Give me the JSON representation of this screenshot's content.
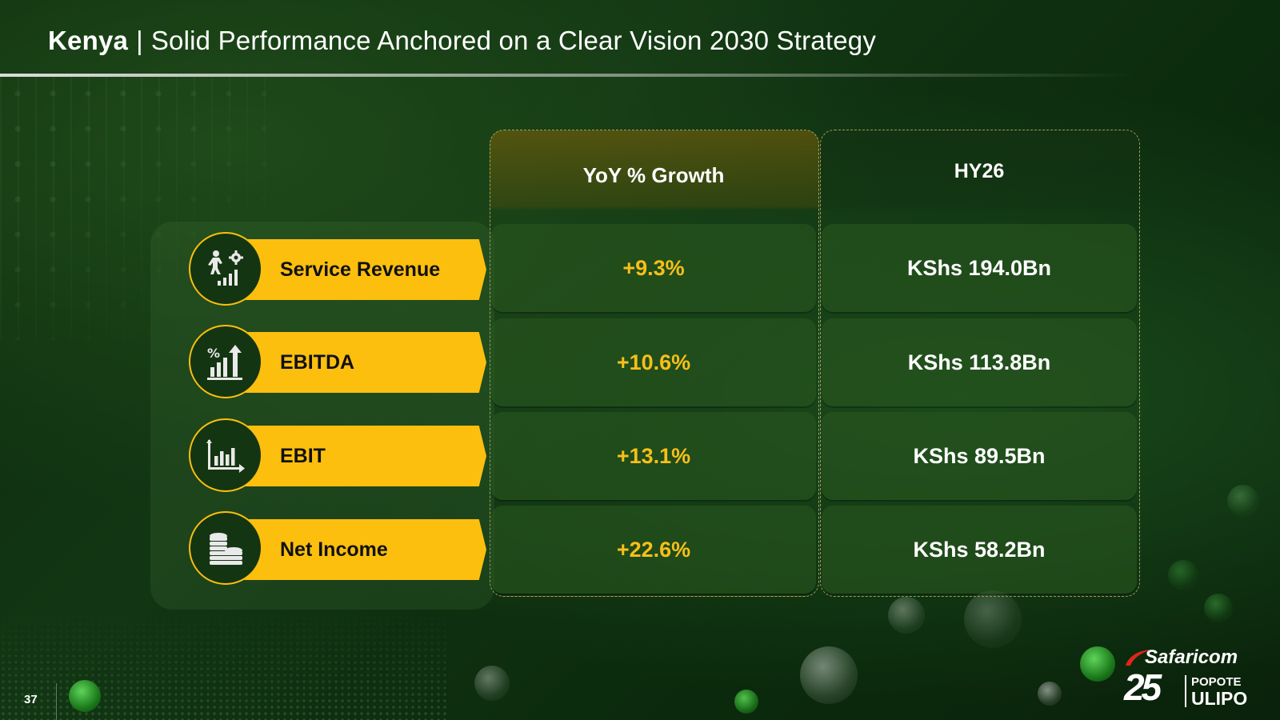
{
  "header": {
    "country": "Kenya",
    "separator": "|",
    "title": "Solid Performance Anchored on a Clear Vision 2030 Strategy"
  },
  "table": {
    "headers": {
      "yoy": "YoY % Growth",
      "hy": "HY26"
    },
    "rows": [
      {
        "label": "Service Revenue",
        "icon": "growth-person-gear-icon",
        "yoy": "+9.3%",
        "hy": "KShs 194.0Bn"
      },
      {
        "label": "EBITDA",
        "icon": "percent-bar-chart-icon",
        "yoy": "+10.6%",
        "hy": "KShs 113.8Bn"
      },
      {
        "label": "EBIT",
        "icon": "bar-chart-axis-icon",
        "yoy": "+13.1%",
        "hy": "KShs 89.5Bn"
      },
      {
        "label": "Net Income",
        "icon": "coin-stack-icon",
        "yoy": "+22.6%",
        "hy": "KShs 58.2Bn"
      }
    ]
  },
  "footer": {
    "page_number": "37"
  },
  "logo": {
    "brand": "Safaricom",
    "anniversary": "25",
    "tagline_1": "POPOTE",
    "tagline_2": "ULIPO"
  },
  "colors": {
    "accent_yellow": "#fcbf0d",
    "value_yellow": "#f7bf1a",
    "background_green": "#123613"
  }
}
